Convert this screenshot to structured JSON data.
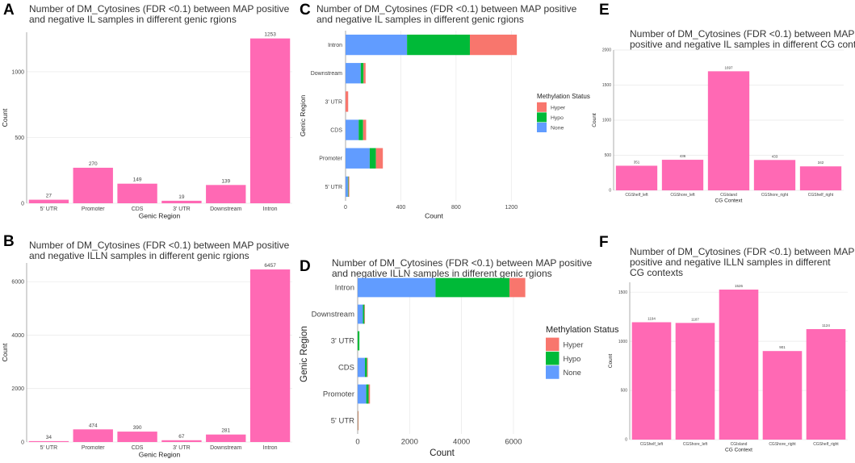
{
  "figure": {
    "colors": {
      "bar": "#ff69b4",
      "hyper": "#f8766d",
      "hypo": "#00ba38",
      "none": "#619cff",
      "grid": "#e8e8e8",
      "axis": "#999999"
    }
  },
  "chart_data": [
    {
      "id": "A",
      "panel_letter": "A",
      "type": "bar",
      "title": [
        "Number of DM_Cytosines (FDR <0.1) between MAP positive",
        "and negative IL samples in different genic rgions"
      ],
      "xlabel": "Genic Region",
      "ylabel": "Count",
      "categories": [
        "5' UTR",
        "Promoter",
        "CDS",
        "3' UTR",
        "Downstream",
        "Intron"
      ],
      "values": [
        27,
        270,
        149,
        19,
        139,
        1253
      ],
      "value_labels": [
        "27",
        "270",
        "149",
        "19",
        "139",
        "1253"
      ],
      "ylim": [
        0,
        1300
      ],
      "yticks": [
        0,
        500,
        1000
      ]
    },
    {
      "id": "B",
      "panel_letter": "B",
      "type": "bar",
      "title": [
        "Number of DM_Cytosines (FDR <0.1) between MAP positive",
        "and negative ILLN samples in different genic rgions"
      ],
      "xlabel": "Genic Region",
      "ylabel": "Count",
      "categories": [
        "5' UTR",
        "Promoter",
        "CDS",
        "3' UTR",
        "Downstream",
        "Intron"
      ],
      "values": [
        34,
        474,
        390,
        67,
        281,
        6457
      ],
      "value_labels": [
        "34",
        "474",
        "390",
        "67",
        "281",
        "6457"
      ],
      "ylim": [
        0,
        6700
      ],
      "yticks": [
        0,
        2000,
        4000,
        6000
      ]
    },
    {
      "id": "C",
      "panel_letter": "C",
      "type": "bar",
      "orientation": "horizontal",
      "stacked": true,
      "title": [
        "Number of DM_Cytosines (FDR <0.1) between MAP positive",
        "and negative IL samples in different genic rgions"
      ],
      "xlabel": "Count",
      "ylabel": "Genic Region",
      "categories": [
        "Intron",
        "Downstream",
        "3' UTR",
        "CDS",
        "Promoter",
        "5' UTR"
      ],
      "series": [
        {
          "name": "None",
          "values": [
            445,
            110,
            0,
            95,
            175,
            17
          ]
        },
        {
          "name": "Hypo",
          "values": [
            455,
            20,
            0,
            32,
            45,
            4
          ]
        },
        {
          "name": "Hyper",
          "values": [
            340,
            15,
            19,
            22,
            50,
            6
          ]
        }
      ],
      "xlim": [
        0,
        1280
      ],
      "xticks": [
        0,
        400,
        800,
        1200
      ],
      "legend": {
        "title": "Methylation Status",
        "entries": [
          "Hyper",
          "Hypo",
          "None"
        ]
      }
    },
    {
      "id": "D",
      "panel_letter": "D",
      "type": "bar",
      "orientation": "horizontal",
      "stacked": true,
      "title": [
        "Number of DM_Cytosines (FDR <0.1) between MAP positive",
        "and negative ILLN samples in different genic rgions"
      ],
      "xlabel": "Count",
      "ylabel": "Genic Region",
      "categories": [
        "Intron",
        "Downstream",
        "3' UTR",
        "CDS",
        "Promoter",
        "5' UTR"
      ],
      "series": [
        {
          "name": "None",
          "values": [
            3000,
            200,
            0,
            280,
            330,
            0
          ]
        },
        {
          "name": "Hypo",
          "values": [
            2850,
            60,
            67,
            80,
            90,
            10
          ]
        },
        {
          "name": "Hyper",
          "values": [
            607,
            21,
            0,
            30,
            54,
            24
          ]
        }
      ],
      "xlim": [
        0,
        6500
      ],
      "xticks": [
        0,
        2000,
        4000,
        6000
      ],
      "legend": {
        "title": "Methylation Status",
        "entries": [
          "Hyper",
          "Hypo",
          "None"
        ]
      }
    },
    {
      "id": "E",
      "panel_letter": "E",
      "type": "bar",
      "title": [
        "Number of DM_Cytosines (FDR <0.1) between MAP",
        "positive and negative IL samples in different CG contexts"
      ],
      "xlabel": "CG Context",
      "ylabel": "Count",
      "categories": [
        "CGShelf_left",
        "CGShore_left",
        "CGIsland",
        "CGShore_right",
        "CGShelf_right"
      ],
      "values": [
        351,
        436,
        1697,
        433,
        342
      ],
      "value_labels": [
        "351",
        "436",
        "1697",
        "433",
        "342"
      ],
      "ylim": [
        0,
        2000
      ],
      "yticks": [
        0,
        500,
        1000,
        1500,
        2000
      ]
    },
    {
      "id": "F",
      "panel_letter": "F",
      "type": "bar",
      "title": [
        "Number of DM_Cytosines (FDR <0.1) between MAP",
        "positive and negative ILLN samples in different",
        "CG contexts"
      ],
      "xlabel": "CG Context",
      "ylabel": "Count",
      "categories": [
        "CGShelf_left",
        "CGShore_left",
        "CGIsland",
        "CGShore_right",
        "CGShelf_right"
      ],
      "values": [
        1194,
        1187,
        1526,
        901,
        1124
      ],
      "value_labels": [
        "1194",
        "1187",
        "1526",
        "901",
        "1124"
      ],
      "ylim": [
        0,
        1600
      ],
      "yticks": [
        0,
        500,
        1000,
        1500
      ]
    }
  ]
}
